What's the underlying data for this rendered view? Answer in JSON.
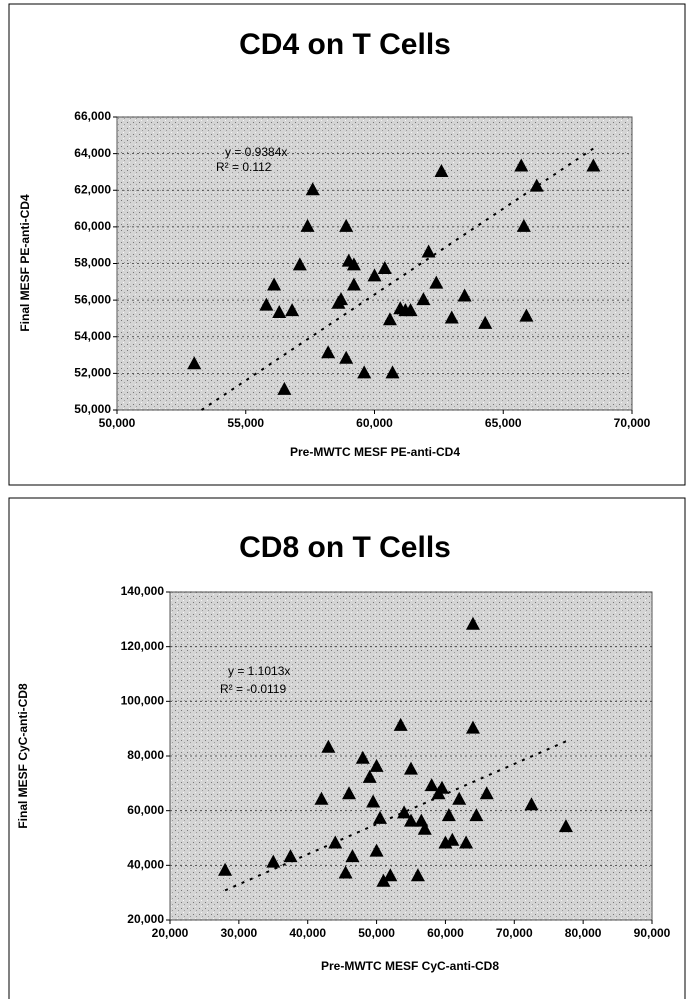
{
  "chart_data": [
    {
      "type": "scatter",
      "title": "CD4 on T Cells",
      "x_label": "Pre-MWTC MESF PE-anti-CD4",
      "y_label": "Final MESF PE-anti-CD4",
      "x": [
        53000,
        55800,
        56100,
        56300,
        56500,
        56800,
        57100,
        57400,
        57600,
        58200,
        58600,
        58700,
        58900,
        58900,
        59000,
        59200,
        59200,
        59600,
        60000,
        60400,
        60600,
        60700,
        61000,
        61200,
        61400,
        61900,
        62100,
        62400,
        62600,
        63000,
        63500,
        64300,
        65700,
        65800,
        65900,
        66300,
        68500
      ],
      "values": [
        52500,
        55700,
        56800,
        55300,
        51100,
        55400,
        57900,
        60000,
        62000,
        53100,
        55800,
        56000,
        60000,
        52800,
        58100,
        57900,
        56800,
        52000,
        57300,
        57700,
        54900,
        52000,
        55500,
        55400,
        55400,
        56000,
        58600,
        56900,
        63000,
        55000,
        56200,
        54700,
        63300,
        60000,
        55100,
        62200,
        63300
      ],
      "color": "#000000",
      "trendline": {
        "equation": "y = 0.9384x",
        "r_squared": "R² = 0.112",
        "slope": 0.9384
      },
      "xlim": [
        50000,
        70000
      ],
      "xticks": [
        {
          "value": 50000,
          "label": "50,000"
        },
        {
          "value": 55000,
          "label": "55,000"
        },
        {
          "value": 60000,
          "label": "60,000"
        },
        {
          "value": 65000,
          "label": "65,000"
        },
        {
          "value": 70000,
          "label": "70,000"
        }
      ],
      "ylim": [
        50000,
        66000
      ],
      "yticks": [
        {
          "value": 50000,
          "label": "50,000"
        },
        {
          "value": 52000,
          "label": "52,000"
        },
        {
          "value": 54000,
          "label": "54,000"
        },
        {
          "value": 56000,
          "label": "56,000"
        },
        {
          "value": 58000,
          "label": "58,000"
        },
        {
          "value": 60000,
          "label": "60,000"
        },
        {
          "value": 62000,
          "label": "62,000"
        },
        {
          "value": 64000,
          "label": "64,000"
        },
        {
          "value": 66000,
          "label": "66,000"
        }
      ],
      "grid": true
    },
    {
      "type": "scatter",
      "title": "CD8 on T Cells",
      "x_label": "Pre-MWTC MESF CyC-anti-CD8",
      "y_label": "Final MESF CyC-anti-CD8",
      "x": [
        28000,
        35000,
        37500,
        42000,
        43000,
        44000,
        45500,
        46000,
        46500,
        48000,
        49000,
        49500,
        50000,
        50000,
        50500,
        51000,
        52000,
        53500,
        54000,
        55000,
        55000,
        56000,
        56500,
        57000,
        58000,
        59000,
        59500,
        60000,
        60500,
        61000,
        62000,
        63000,
        64000,
        64000,
        64500,
        66000,
        72500,
        77500
      ],
      "values": [
        38000,
        41000,
        43000,
        64000,
        83000,
        48000,
        37000,
        66000,
        43000,
        79000,
        72000,
        63000,
        76000,
        45000,
        57000,
        34000,
        36000,
        91000,
        59000,
        75000,
        56000,
        36000,
        56000,
        53000,
        69000,
        66000,
        68000,
        48000,
        58000,
        49000,
        64000,
        48000,
        90000,
        128000,
        58000,
        66000,
        62000,
        54000
      ],
      "color": "#000000",
      "trendline": {
        "equation": "y = 1.1013x",
        "r_squared": "R² = -0.0119",
        "slope": 1.1013
      },
      "xlim": [
        20000,
        90000
      ],
      "xticks": [
        {
          "value": 20000,
          "label": "20,000"
        },
        {
          "value": 30000,
          "label": "30,000"
        },
        {
          "value": 40000,
          "label": "40,000"
        },
        {
          "value": 50000,
          "label": "50,000"
        },
        {
          "value": 60000,
          "label": "60,000"
        },
        {
          "value": 70000,
          "label": "70,000"
        },
        {
          "value": 80000,
          "label": "80,000"
        },
        {
          "value": 90000,
          "label": "90,000"
        }
      ],
      "ylim": [
        20000,
        140000
      ],
      "yticks": [
        {
          "value": 20000,
          "label": "20,000"
        },
        {
          "value": 40000,
          "label": "40,000"
        },
        {
          "value": 60000,
          "label": "60,000"
        },
        {
          "value": 80000,
          "label": "80,000"
        },
        {
          "value": 100000,
          "label": "100,000"
        },
        {
          "value": 120000,
          "label": "120,000"
        },
        {
          "value": 140000,
          "label": "140,000"
        }
      ],
      "grid": true
    }
  ]
}
